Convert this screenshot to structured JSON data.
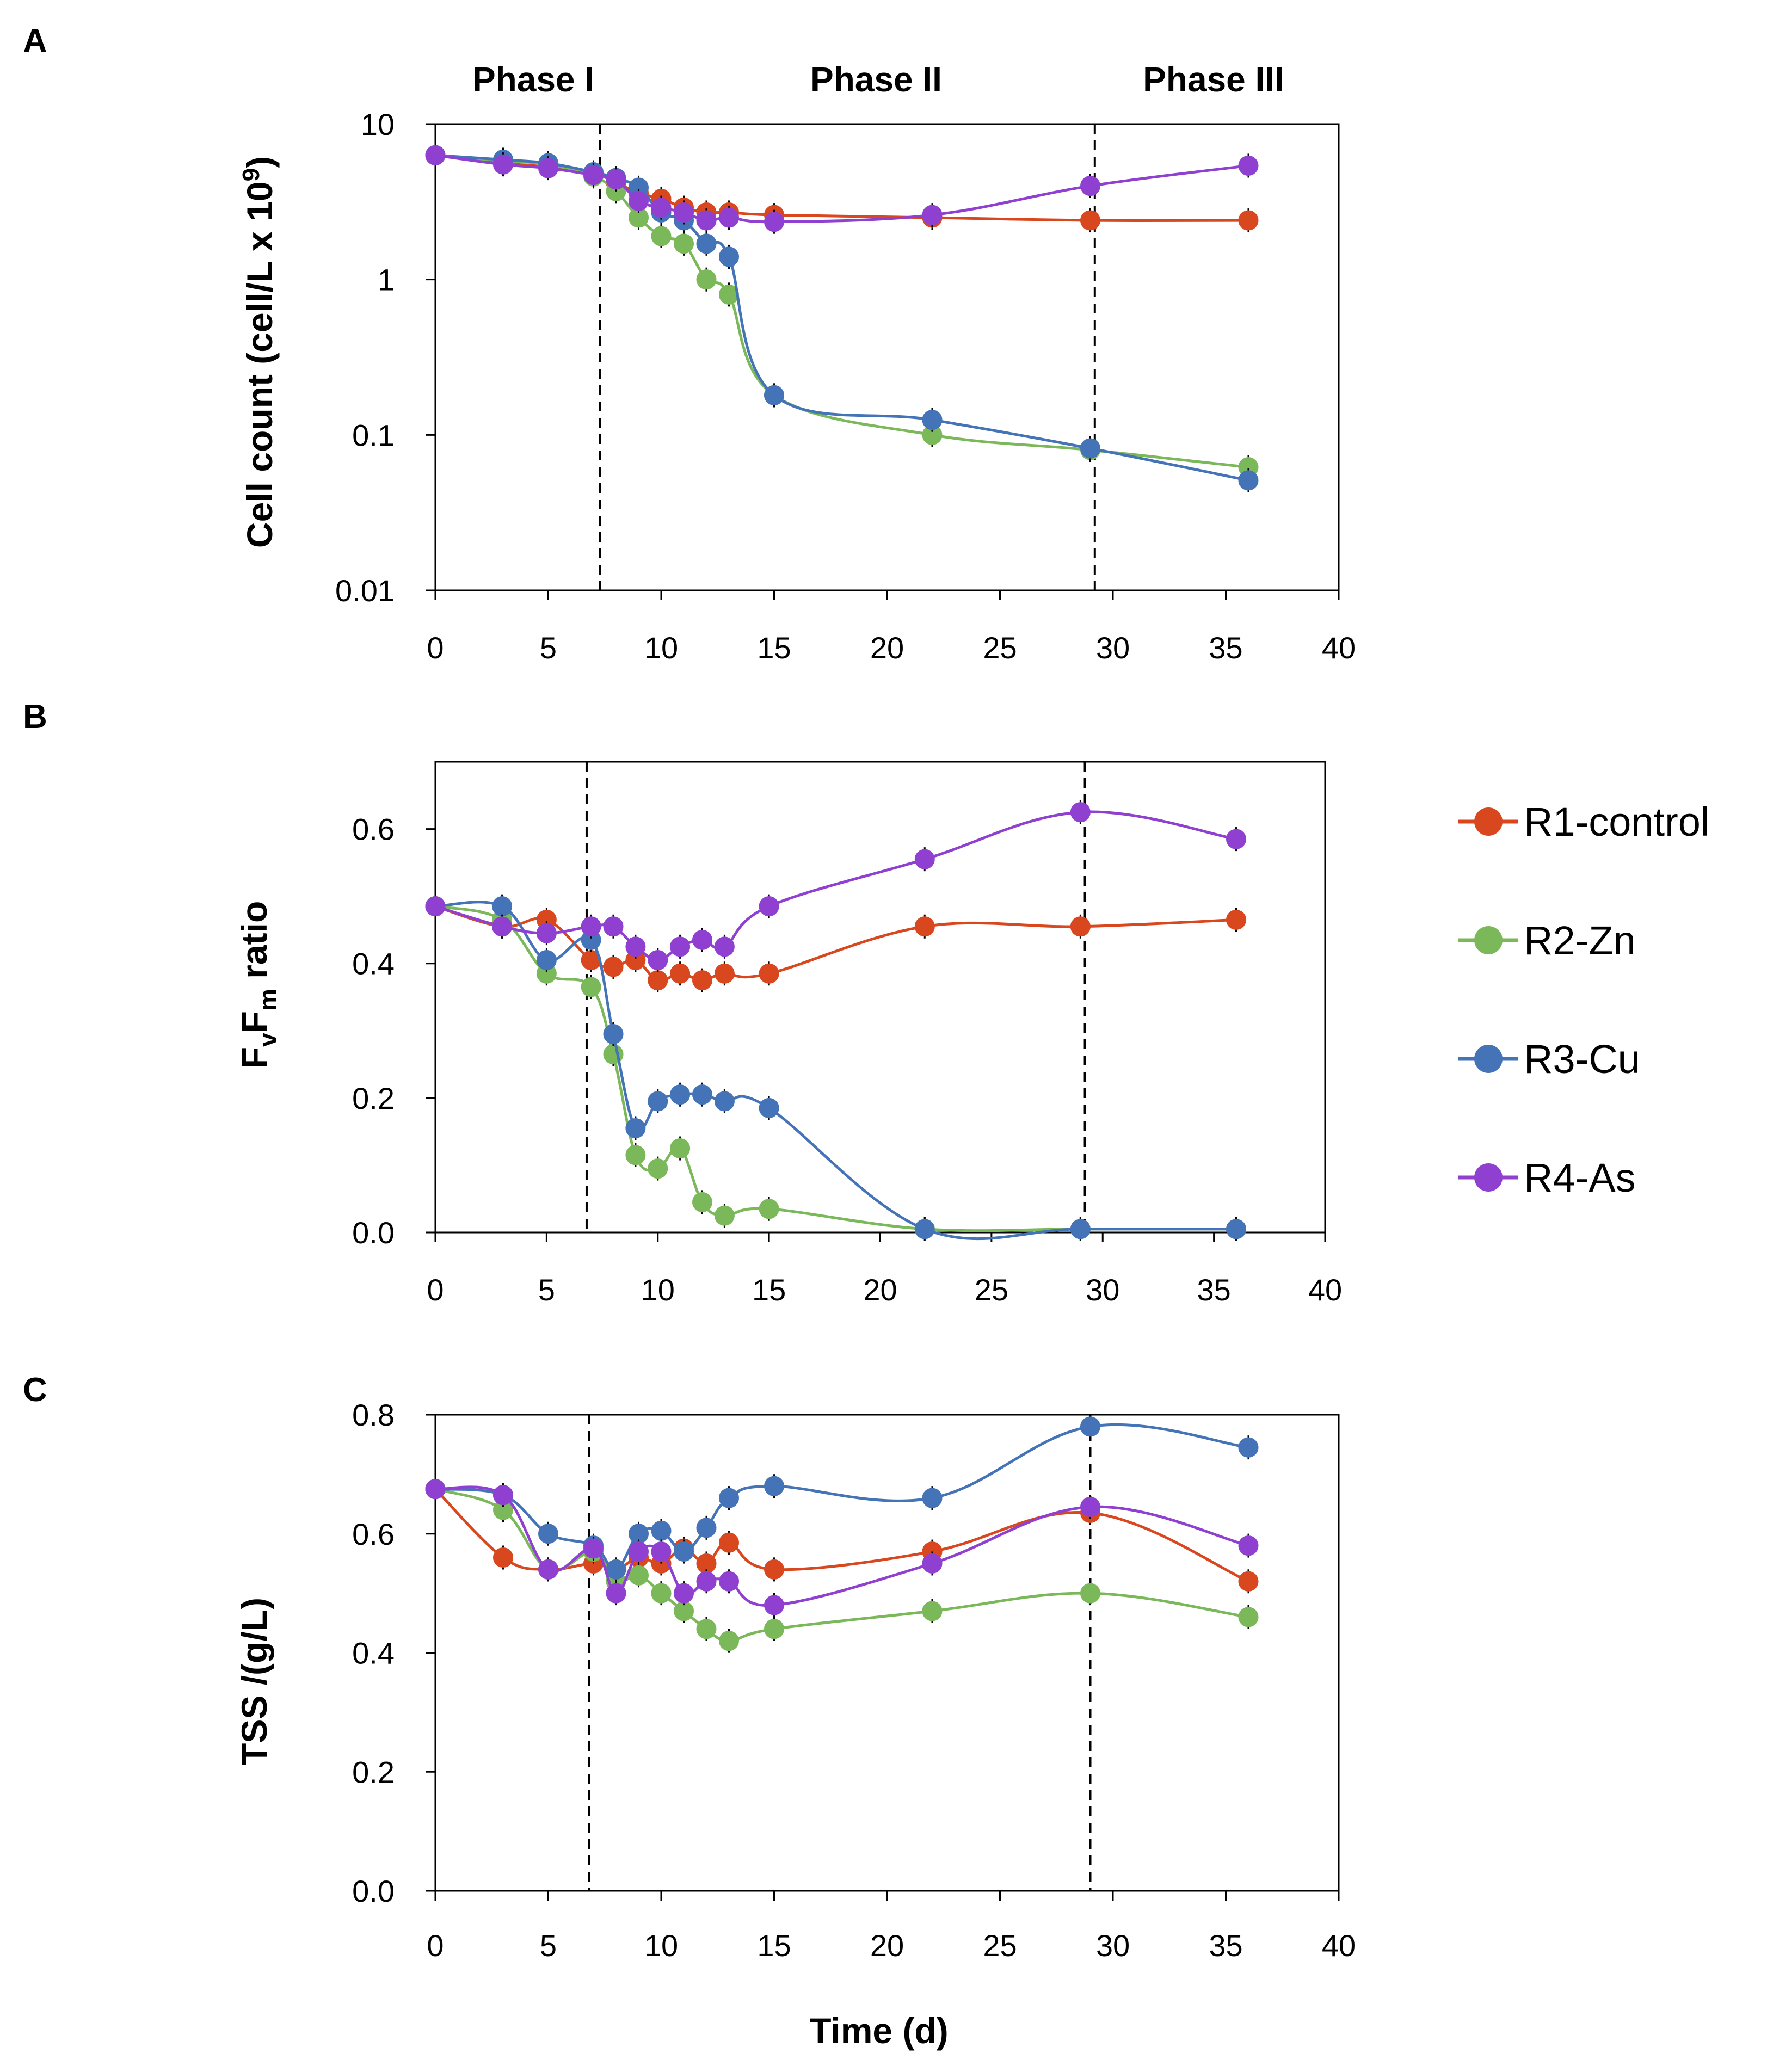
{
  "x": [
    0,
    3,
    5,
    7,
    8,
    9,
    10,
    11,
    12,
    13,
    15,
    22,
    29,
    36
  ],
  "series_meta": [
    {
      "key": "R1",
      "name": "R1-control",
      "color": "#d9471e"
    },
    {
      "key": "R2",
      "name": "R2-Zn",
      "color": "#7ab85a"
    },
    {
      "key": "R3",
      "name": "R3-Cu",
      "color": "#4473b8"
    },
    {
      "key": "R4",
      "name": "R4-As",
      "color": "#9040d0"
    }
  ],
  "legend": [
    "R1-control",
    "R2-Zn",
    "R3-Cu",
    "R4-As"
  ],
  "xlabel": "Time (d)",
  "chart_data": [
    {
      "panel": "A",
      "type": "line",
      "yscale": "log",
      "ylabel": "Cell count (cell/L x 10",
      "ylabel_sup": "9",
      "ylabel_end": ")",
      "xlim": [
        0,
        40
      ],
      "ylim": [
        0.01,
        10
      ],
      "xticks": [
        "0",
        "5",
        "10",
        "15",
        "20",
        "25",
        "30",
        "35",
        "40"
      ],
      "yticks": [
        "0.01",
        "0.1",
        "1",
        "10"
      ],
      "vlines": [
        7.3,
        29.2
      ],
      "phase_labels": [
        "Phase I",
        "Phase II",
        "Phase III"
      ],
      "series": [
        {
          "name": "R1-control",
          "values": [
            6.3,
            5.6,
            5.3,
            4.8,
            4.2,
            3.6,
            3.3,
            2.9,
            2.7,
            2.7,
            2.6,
            2.5,
            2.4,
            2.4
          ]
        },
        {
          "name": "R2-Zn",
          "values": [
            6.3,
            5.8,
            5.5,
            4.6,
            3.7,
            2.5,
            1.9,
            1.7,
            1.0,
            0.8,
            0.18,
            0.1,
            0.08,
            0.062
          ]
        },
        {
          "name": "R3-Cu",
          "values": [
            6.3,
            5.9,
            5.6,
            4.9,
            4.5,
            3.9,
            2.7,
            2.4,
            1.7,
            1.4,
            0.18,
            0.125,
            0.082,
            0.051
          ]
        },
        {
          "name": "R4-As",
          "values": [
            6.3,
            5.5,
            5.2,
            4.7,
            4.4,
            3.2,
            2.9,
            2.7,
            2.4,
            2.5,
            2.35,
            2.6,
            4.0,
            5.4
          ]
        }
      ]
    },
    {
      "panel": "B",
      "type": "line",
      "yscale": "linear",
      "ylabel": "F",
      "ylabel_sub1": "v",
      "ylabel_mid": "F",
      "ylabel_sub2": "m",
      "ylabel_end": " ratio",
      "xlim": [
        0,
        40
      ],
      "ylim": [
        0.0,
        0.7
      ],
      "xticks": [
        "0",
        "5",
        "10",
        "15",
        "20",
        "25",
        "30",
        "35",
        "40"
      ],
      "yticks": [
        "0.0",
        "0.2",
        "0.4",
        "0.6"
      ],
      "vlines": [
        6.8,
        29.2
      ],
      "series": [
        {
          "name": "R1-control",
          "values": [
            0.485,
            0.455,
            0.465,
            0.405,
            0.395,
            0.405,
            0.375,
            0.385,
            0.375,
            0.385,
            0.385,
            0.455,
            0.455,
            0.465
          ]
        },
        {
          "name": "R2-Zn",
          "values": [
            0.485,
            0.465,
            0.385,
            0.365,
            0.265,
            0.115,
            0.095,
            0.125,
            0.045,
            0.025,
            0.035,
            0.005,
            0.005,
            0.005
          ]
        },
        {
          "name": "R3-Cu",
          "values": [
            0.485,
            0.485,
            0.405,
            0.435,
            0.295,
            0.155,
            0.195,
            0.205,
            0.205,
            0.195,
            0.185,
            0.005,
            0.005,
            0.005
          ]
        },
        {
          "name": "R4-As",
          "values": [
            0.485,
            0.455,
            0.445,
            0.455,
            0.455,
            0.425,
            0.405,
            0.425,
            0.435,
            0.425,
            0.485,
            0.555,
            0.625,
            0.585
          ]
        }
      ]
    },
    {
      "panel": "C",
      "type": "line",
      "yscale": "linear",
      "ylabel": "TSS /(g/L)",
      "xlim": [
        0,
        40
      ],
      "ylim": [
        0.0,
        0.8
      ],
      "xticks": [
        "0",
        "5",
        "10",
        "15",
        "20",
        "25",
        "30",
        "35",
        "40"
      ],
      "yticks": [
        "0.0",
        "0.2",
        "0.4",
        "0.6",
        "0.8"
      ],
      "vlines": [
        6.8,
        29.0
      ],
      "series": [
        {
          "name": "R1-control",
          "values": [
            0.675,
            0.56,
            0.54,
            0.55,
            0.54,
            0.56,
            0.55,
            0.575,
            0.55,
            0.585,
            0.54,
            0.57,
            0.635,
            0.52
          ]
        },
        {
          "name": "R2-Zn",
          "values": [
            0.675,
            0.64,
            0.54,
            0.57,
            0.52,
            0.53,
            0.5,
            0.47,
            0.44,
            0.42,
            0.44,
            0.47,
            0.5,
            0.46
          ]
        },
        {
          "name": "R3-Cu",
          "values": [
            0.675,
            0.665,
            0.6,
            0.58,
            0.54,
            0.6,
            0.605,
            0.57,
            0.61,
            0.66,
            0.68,
            0.66,
            0.78,
            0.745
          ]
        },
        {
          "name": "R4-As",
          "values": [
            0.675,
            0.665,
            0.54,
            0.575,
            0.5,
            0.57,
            0.57,
            0.5,
            0.52,
            0.52,
            0.48,
            0.55,
            0.645,
            0.58
          ]
        }
      ]
    }
  ]
}
